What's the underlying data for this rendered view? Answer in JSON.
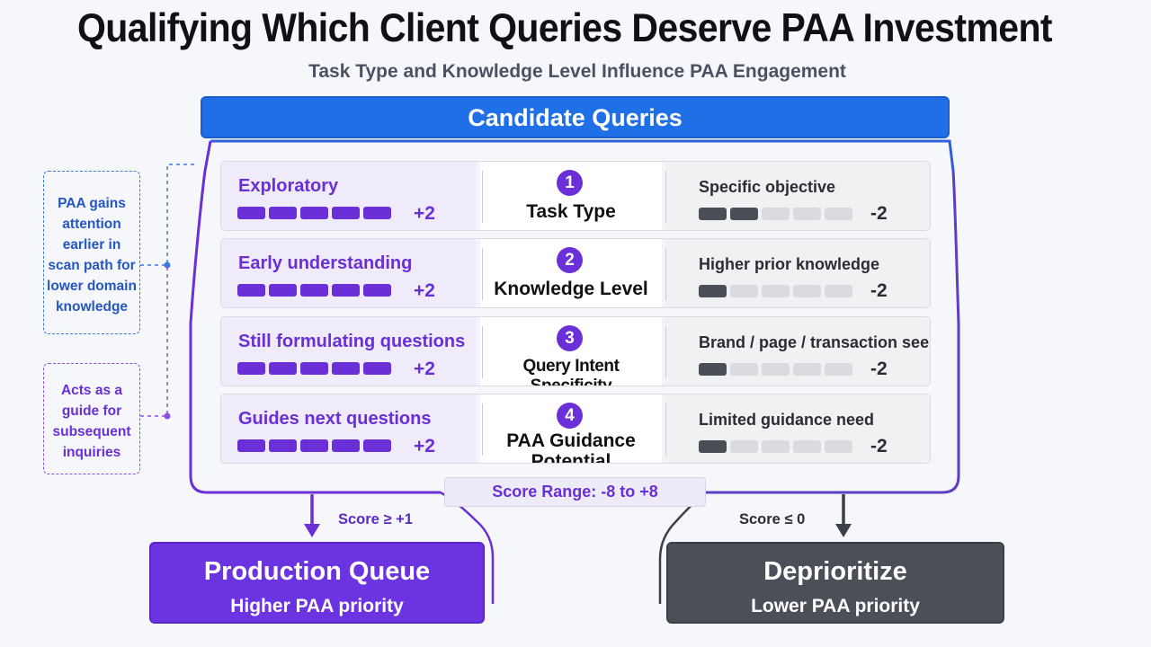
{
  "title": "Qualifying Which Client Queries Deserve PAA Investment",
  "subtitle": "Task Type and Knowledge Level Influence PAA Engagement",
  "header": "Candidate Queries",
  "rows": [
    {
      "number": "1",
      "criterion_lines": [
        "Task Type"
      ],
      "left_label": "Exploratory",
      "left_score": "+2",
      "left_level": 5,
      "right_label": "Specific objective",
      "right_score": "-2",
      "right_level": 2
    },
    {
      "number": "2",
      "criterion_lines": [
        "Knowledge Level"
      ],
      "left_label": "Early understanding",
      "left_score": "+2",
      "left_level": 5,
      "right_label": "Higher prior knowledge",
      "right_score": "-2",
      "right_level": 1
    },
    {
      "number": "3",
      "criterion_lines": [
        "Query Intent Specificity"
      ],
      "left_label": "Still formulating questions",
      "left_score": "+2",
      "left_level": 5,
      "right_label": "Brand / page / transaction seeking",
      "right_score": "-2",
      "right_level": 1
    },
    {
      "number": "4",
      "criterion_lines": [
        "PAA Guidance",
        "Potential"
      ],
      "left_label": "Guides next questions",
      "left_score": "+2",
      "left_level": 5,
      "right_label": "Limited guidance need",
      "right_score": "-2",
      "right_level": 1
    }
  ],
  "score_range": "Score Range: -8 to +8",
  "notes": {
    "blue": [
      "PAA gains",
      "attention",
      "earlier in",
      "scan path for",
      "lower domain",
      "knowledge"
    ],
    "purple": [
      "Acts as a",
      "guide for",
      "subsequent",
      "inquiries"
    ]
  },
  "outcomes": {
    "production": {
      "condition": "Score ≥ +1",
      "title": "Production Queue",
      "subtitle": "Higher PAA priority"
    },
    "deprioritize": {
      "condition": "Score ≤ 0",
      "title": "Deprioritize",
      "subtitle": "Lower PAA priority"
    }
  },
  "colors": {
    "purple": "#6a2fd6",
    "blue": "#1f6fe6",
    "dark": "#4a4f58"
  }
}
